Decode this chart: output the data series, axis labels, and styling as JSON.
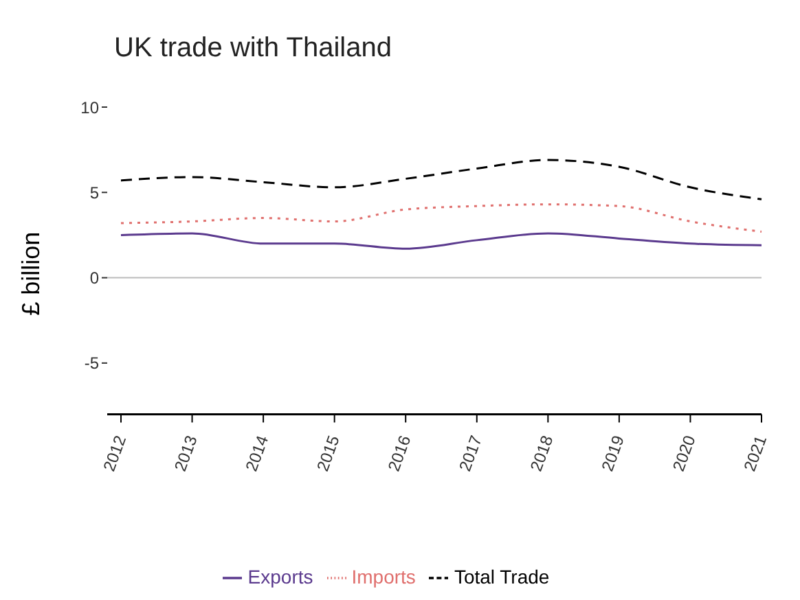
{
  "chart_data": {
    "type": "line",
    "title": "UK trade with Thailand",
    "ylabel": "£ billion",
    "categories": [
      "2012",
      "2013",
      "2014",
      "2015",
      "2016",
      "2017",
      "2018",
      "2019",
      "2020",
      "2021"
    ],
    "series": [
      {
        "name": "Exports",
        "color": "#5b3a8e",
        "line_style": "solid",
        "values": [
          2.5,
          2.6,
          2.0,
          2.0,
          1.7,
          2.2,
          2.6,
          2.3,
          2.0,
          1.9
        ]
      },
      {
        "name": "Imports",
        "color": "#e0706e",
        "line_style": "dotted",
        "values": [
          3.2,
          3.3,
          3.5,
          3.3,
          4.0,
          4.2,
          4.3,
          4.2,
          3.3,
          2.7
        ]
      },
      {
        "name": "Total Trade",
        "color": "#000000",
        "line_style": "dashed",
        "values": [
          5.7,
          5.9,
          5.6,
          5.3,
          5.8,
          6.4,
          6.9,
          6.5,
          5.3,
          4.6
        ]
      }
    ],
    "ylim": [
      -8,
      10
    ],
    "yticks": [
      -5,
      0,
      5,
      10
    ],
    "ref_lines": [
      {
        "axis": "y",
        "value": 0,
        "color": "#bbbbbb"
      }
    ],
    "grid": false,
    "legend": "bottom",
    "marker": "none"
  }
}
